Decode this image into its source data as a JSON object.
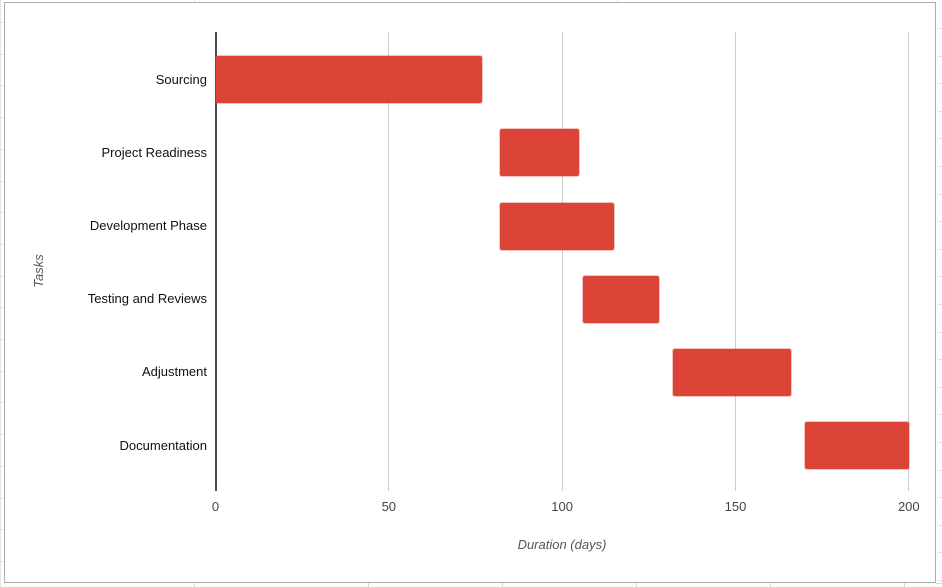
{
  "chart_data": {
    "type": "bar",
    "orientation": "horizontal",
    "title": "",
    "xlabel": "Duration (days)",
    "ylabel": "Tasks",
    "xlim": [
      0,
      200
    ],
    "x_ticks": [
      0,
      50,
      100,
      150,
      200
    ],
    "grid": true,
    "legend": "none",
    "categories": [
      "Sourcing",
      "Project Readiness",
      "Development Phase",
      "Testing and Reviews",
      "Adjustment",
      "Documentation"
    ],
    "series": [
      {
        "name": "Tasks",
        "bars": [
          {
            "category": "Sourcing",
            "start": 0,
            "end": 77,
            "duration": 77
          },
          {
            "category": "Project Readiness",
            "start": 82,
            "end": 105,
            "duration": 23
          },
          {
            "category": "Development Phase",
            "start": 82,
            "end": 115,
            "duration": 33
          },
          {
            "category": "Testing and Reviews",
            "start": 106,
            "end": 128,
            "duration": 22
          },
          {
            "category": "Adjustment",
            "start": 132,
            "end": 166,
            "duration": 34
          },
          {
            "category": "Documentation",
            "start": 170,
            "end": 200,
            "duration": 30
          }
        ]
      }
    ],
    "colors": {
      "bar": "#db4437",
      "bar_halo": "rgba(219,68,55,0.32)",
      "gridline": "#cccccc",
      "zero_line": "#4d4d4d",
      "tick_label": "#444444",
      "category_label": "#111111",
      "axis_title": "#555555",
      "chart_border": "#ababab",
      "sheet_gridline": "#e4e4e4",
      "sheet_gridline_dark": "#d6d6d6"
    }
  }
}
